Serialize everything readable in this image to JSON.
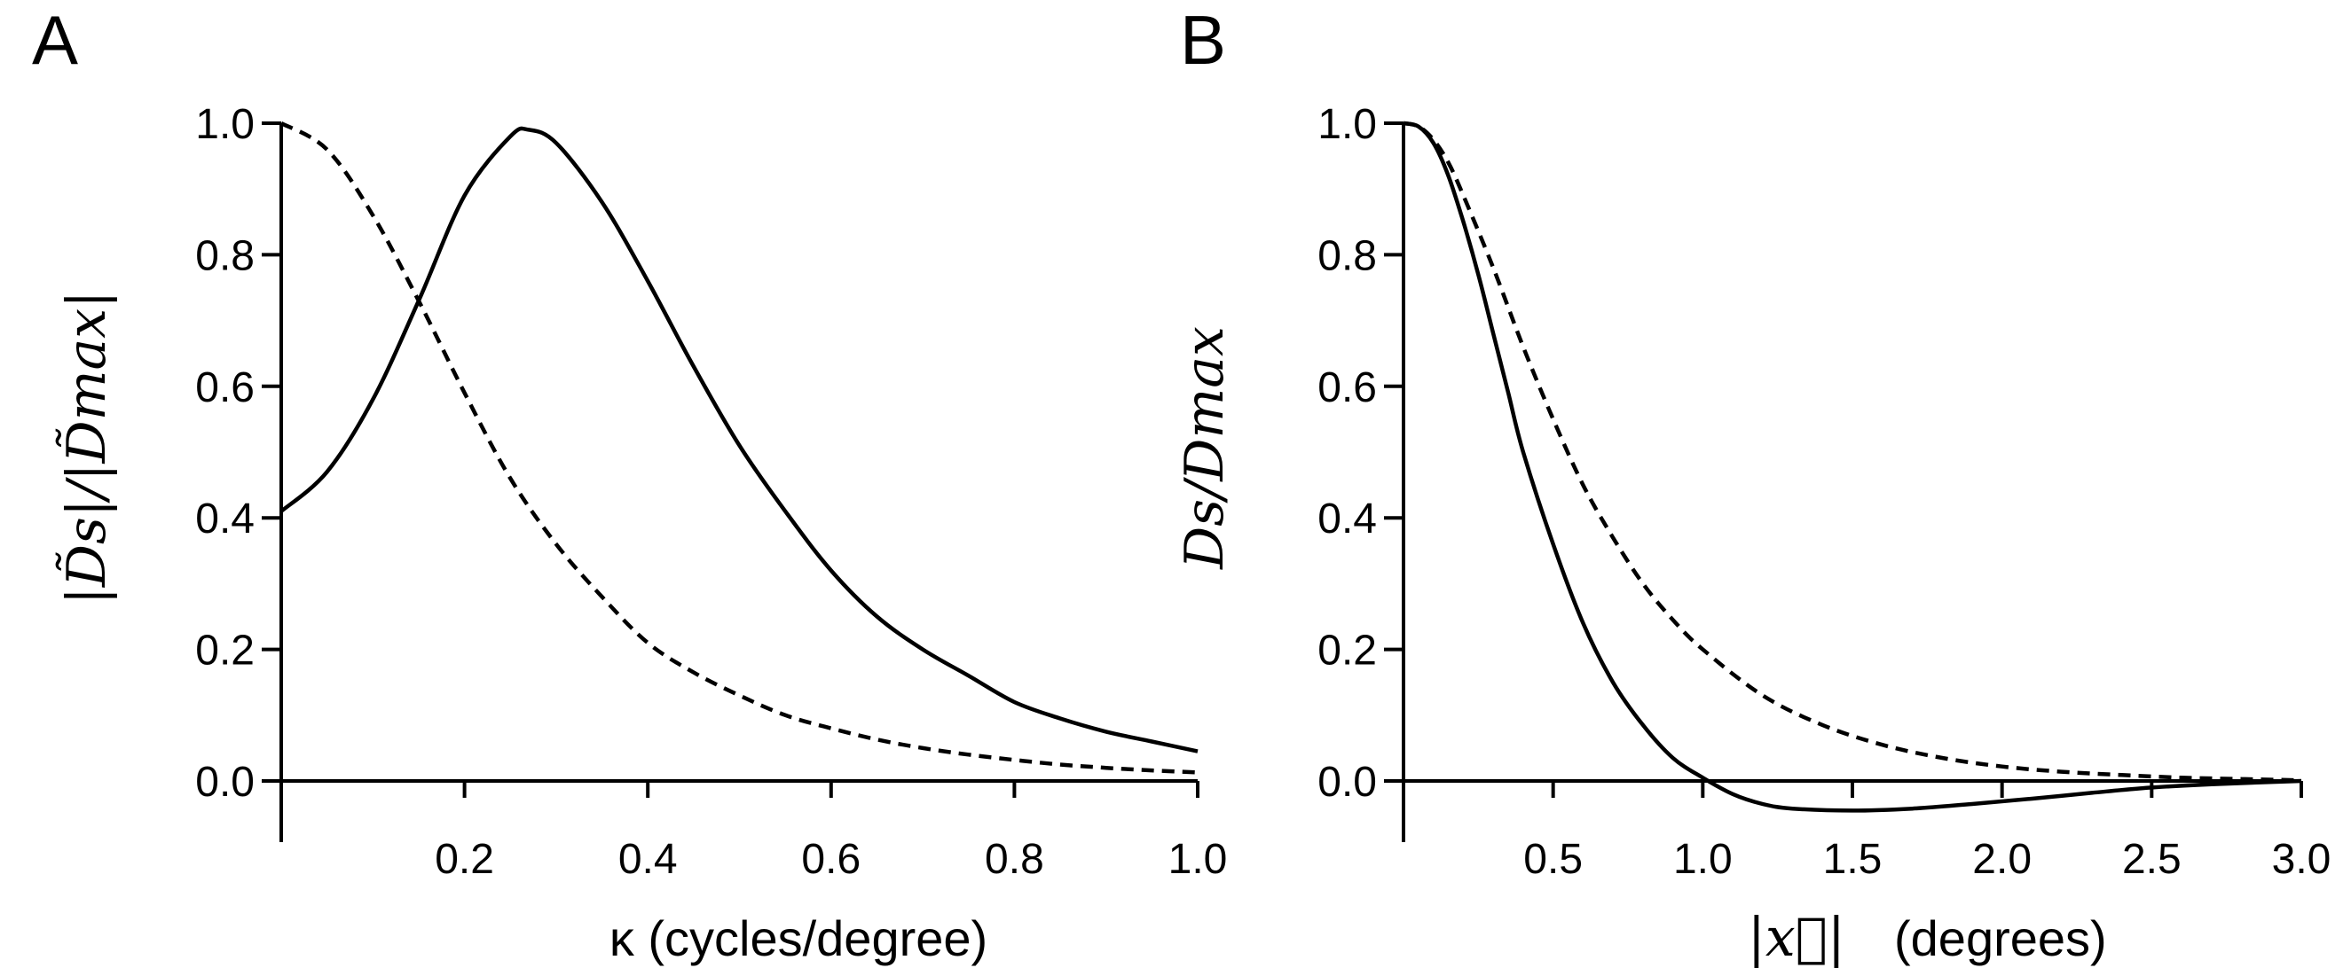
{
  "chart_data": [
    {
      "panel": "A",
      "type": "line",
      "xlabel": "κ (cycles/degree)",
      "ylabel": "|D̃s|/|D̃max|",
      "xlim": [
        0.0,
        1.0
      ],
      "ylim": [
        0.0,
        1.0
      ],
      "x_ticks": [
        0.2,
        0.4,
        0.6,
        0.8,
        1.0
      ],
      "x_tick_labels": [
        "0.2",
        "0.4",
        "0.6",
        "0.8",
        "1.0"
      ],
      "y_ticks": [
        0.0,
        0.2,
        0.4,
        0.6,
        0.8,
        1.0
      ],
      "y_tick_labels": [
        "0.0",
        "0.2",
        "0.4",
        "0.6",
        "0.8",
        "1.0"
      ],
      "series": [
        {
          "style": "solid",
          "x": [
            0.0,
            0.05,
            0.1,
            0.15,
            0.2,
            0.25,
            0.27,
            0.3,
            0.35,
            0.4,
            0.45,
            0.5,
            0.55,
            0.6,
            0.65,
            0.7,
            0.75,
            0.8,
            0.85,
            0.9,
            0.95,
            1.0
          ],
          "y": [
            0.41,
            0.47,
            0.58,
            0.73,
            0.89,
            0.98,
            0.99,
            0.97,
            0.88,
            0.76,
            0.63,
            0.51,
            0.41,
            0.32,
            0.25,
            0.2,
            0.16,
            0.12,
            0.095,
            0.075,
            0.06,
            0.045
          ]
        },
        {
          "style": "dashed",
          "x": [
            0.0,
            0.05,
            0.1,
            0.15,
            0.2,
            0.25,
            0.3,
            0.35,
            0.4,
            0.45,
            0.5,
            0.55,
            0.6,
            0.65,
            0.7,
            0.75,
            0.8,
            0.85,
            0.9,
            0.95,
            1.0
          ],
          "y": [
            1.0,
            0.96,
            0.86,
            0.73,
            0.59,
            0.46,
            0.36,
            0.28,
            0.21,
            0.165,
            0.13,
            0.1,
            0.08,
            0.063,
            0.05,
            0.04,
            0.032,
            0.025,
            0.02,
            0.016,
            0.013
          ]
        }
      ]
    },
    {
      "panel": "B",
      "type": "line",
      "xlabel": "(degrees)",
      "xlabel_math": "|x⃗|",
      "ylabel": "Ds/Dmax",
      "xlim": [
        0.0,
        3.0
      ],
      "ylim": [
        -0.05,
        1.0
      ],
      "x_ticks": [
        0.5,
        1.0,
        1.5,
        2.0,
        2.5,
        3.0
      ],
      "x_tick_labels": [
        "0.5",
        "1.0",
        "1.5",
        "2.0",
        "2.5",
        "3.0"
      ],
      "y_ticks": [
        0.0,
        0.2,
        0.4,
        0.6,
        0.8,
        1.0
      ],
      "y_tick_labels": [
        "0.0",
        "0.2",
        "0.4",
        "0.6",
        "0.8",
        "1.0"
      ],
      "series": [
        {
          "style": "solid",
          "x": [
            0.0,
            0.05,
            0.1,
            0.15,
            0.2,
            0.25,
            0.3,
            0.35,
            0.4,
            0.5,
            0.6,
            0.7,
            0.8,
            0.9,
            1.0,
            1.1,
            1.2,
            1.3,
            1.5,
            1.7,
            1.9,
            2.1,
            2.3,
            2.5,
            2.7,
            3.0
          ],
          "y": [
            1.0,
            0.995,
            0.97,
            0.92,
            0.85,
            0.77,
            0.68,
            0.59,
            0.5,
            0.36,
            0.24,
            0.15,
            0.085,
            0.035,
            0.005,
            -0.02,
            -0.035,
            -0.042,
            -0.045,
            -0.042,
            -0.035,
            -0.027,
            -0.018,
            -0.01,
            -0.005,
            0.0
          ]
        },
        {
          "style": "dashed",
          "x": [
            0.0,
            0.05,
            0.1,
            0.15,
            0.2,
            0.3,
            0.4,
            0.5,
            0.6,
            0.7,
            0.8,
            0.9,
            1.0,
            1.2,
            1.4,
            1.6,
            1.8,
            2.0,
            2.2,
            2.4,
            2.6,
            2.8,
            3.0
          ],
          "y": [
            1.0,
            0.995,
            0.975,
            0.94,
            0.89,
            0.78,
            0.66,
            0.55,
            0.45,
            0.37,
            0.3,
            0.245,
            0.2,
            0.13,
            0.085,
            0.055,
            0.035,
            0.022,
            0.014,
            0.009,
            0.005,
            0.003,
            0.001
          ]
        }
      ]
    }
  ],
  "panels": {
    "a": {
      "letter": "A"
    },
    "b": {
      "letter": "B"
    }
  }
}
